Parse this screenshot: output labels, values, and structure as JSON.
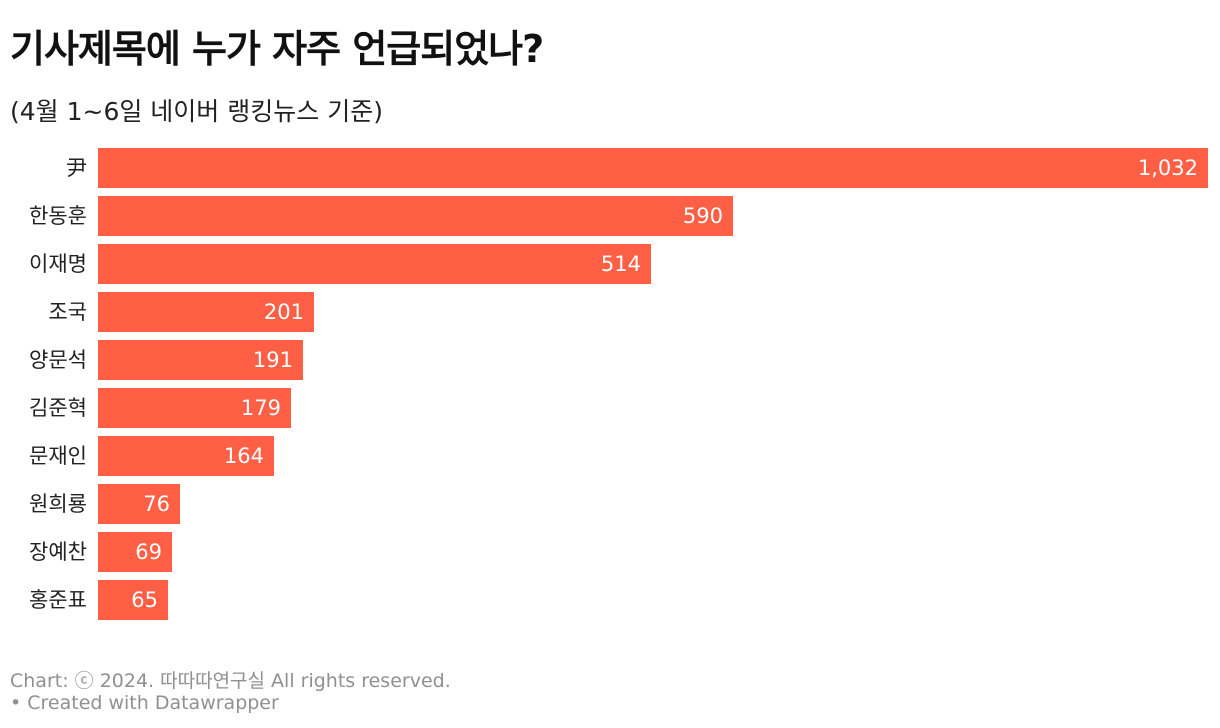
{
  "header": {
    "title": "기사제목에 누가 자주 언급되었나?",
    "subtitle": "(4월 1~6일 네이버 랭킹뉴스 기준)"
  },
  "chart_data": {
    "type": "bar",
    "orientation": "horizontal",
    "categories": [
      "尹",
      "한동훈",
      "이재명",
      "조국",
      "양문석",
      "김준혁",
      "문재인",
      "원희룡",
      "장예찬",
      "홍준표"
    ],
    "values": [
      1032,
      590,
      514,
      201,
      191,
      179,
      164,
      76,
      69,
      65
    ],
    "value_labels": [
      "1,032",
      "590",
      "514",
      "201",
      "191",
      "179",
      "164",
      "76",
      "69",
      "65"
    ],
    "title": "기사제목에 누가 자주 언급되었나?",
    "subtitle": "(4월 1~6일 네이버 랭킹뉴스 기준)",
    "xlim": [
      0,
      1032
    ],
    "grid": false,
    "legend": "none",
    "bar_color": "#ff5f45"
  },
  "footer": {
    "credit": "Chart: ⓒ 2024. 따따따연구실 All rights reserved.",
    "tool": "• Created with Datawrapper"
  }
}
